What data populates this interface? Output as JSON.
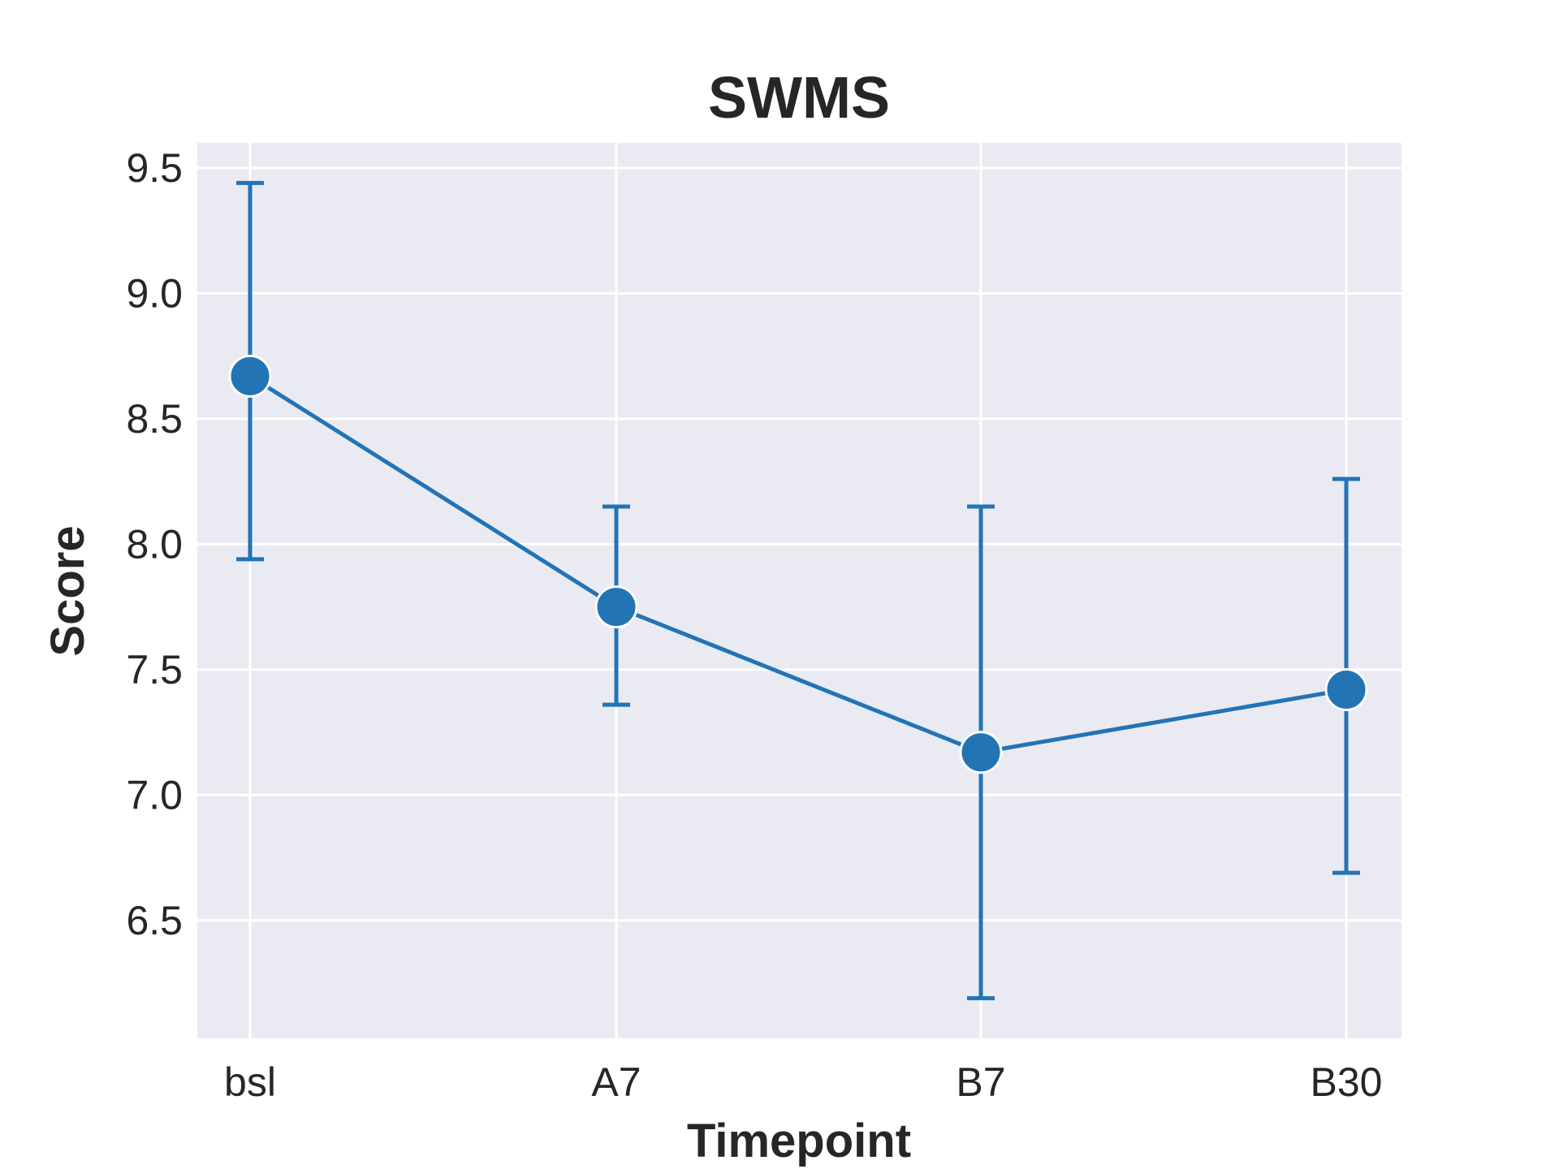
{
  "chart_data": {
    "type": "line",
    "title": "SWMS",
    "xlabel": "Timepoint",
    "ylabel": "Score",
    "categories": [
      "bsl",
      "A7",
      "B7",
      "B30"
    ],
    "series": [
      {
        "values": [
          8.67,
          7.75,
          7.17,
          7.42
        ],
        "error_low": [
          7.94,
          7.36,
          6.19,
          6.69
        ],
        "error_high": [
          9.44,
          8.15,
          8.15,
          8.26
        ],
        "color": "#2274b5"
      }
    ],
    "ylim": [
      6.03,
      9.6
    ],
    "yticks": [
      6.5,
      7.0,
      7.5,
      8.0,
      8.5,
      9.0,
      9.5
    ],
    "ytick_labels": [
      "6.5",
      "7.0",
      "7.5",
      "8.0",
      "8.5",
      "9.0",
      "9.5"
    ],
    "grid": true,
    "background": "#eaeaf2"
  }
}
